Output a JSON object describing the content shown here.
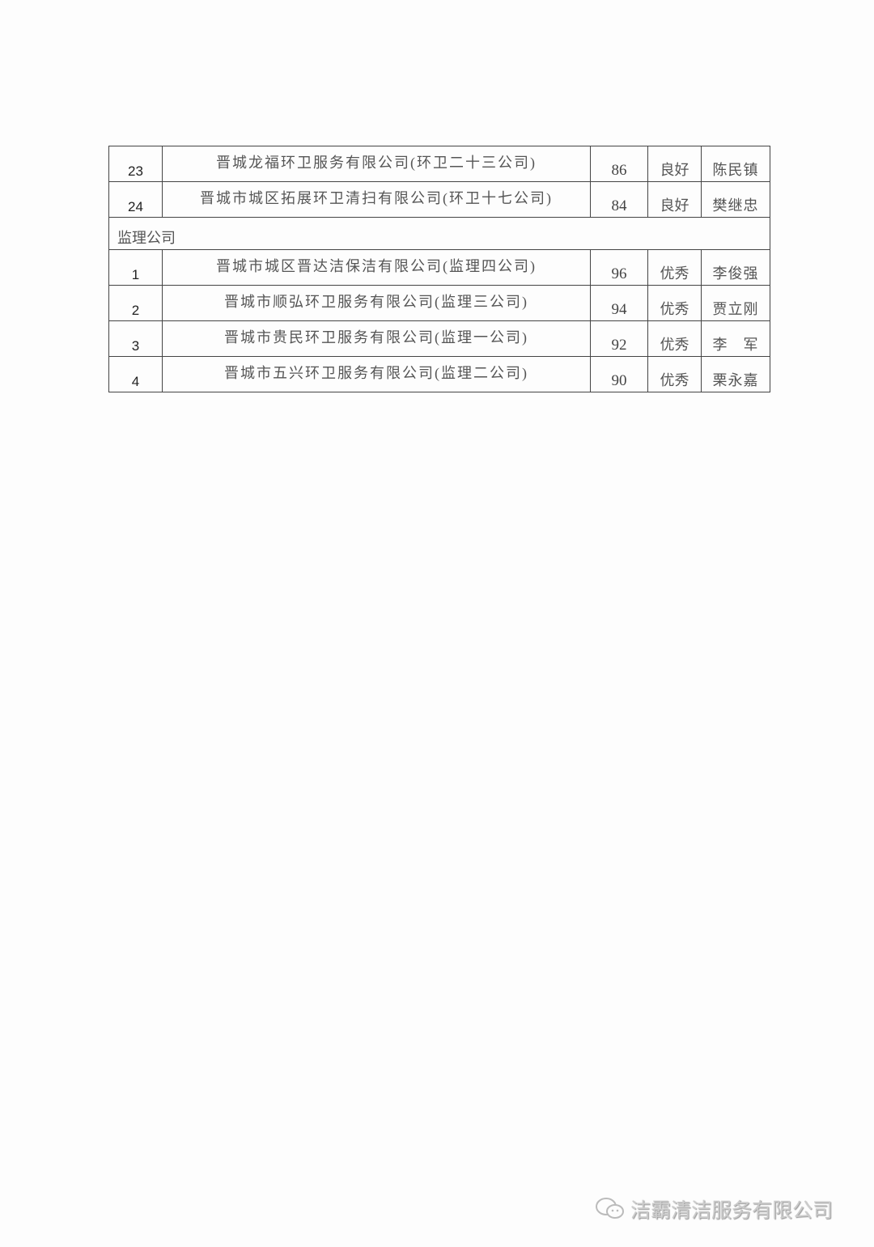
{
  "rows_top": [
    {
      "no": "23",
      "name": "晋城龙福环卫服务有限公司(环卫二十三公司)",
      "score": "86",
      "grade": "良好",
      "person": "陈民镇"
    },
    {
      "no": "24",
      "name": "晋城市城区拓展环卫清扫有限公司(环卫十七公司)",
      "score": "84",
      "grade": "良好",
      "person": "樊继忠"
    }
  ],
  "section_label": "监理公司",
  "rows_section": [
    {
      "no": "1",
      "name": "晋城市城区晋达洁保洁有限公司(监理四公司)",
      "score": "96",
      "grade": "优秀",
      "person": "李俊强"
    },
    {
      "no": "2",
      "name": "晋城市顺弘环卫服务有限公司(监理三公司)",
      "score": "94",
      "grade": "优秀",
      "person": "贾立刚"
    },
    {
      "no": "3",
      "name": "晋城市贵民环卫服务有限公司(监理一公司)",
      "score": "92",
      "grade": "优秀",
      "person": "李　军"
    },
    {
      "no": "4",
      "name": "晋城市五兴环卫服务有限公司(监理二公司)",
      "score": "90",
      "grade": "优秀",
      "person": "栗永嘉"
    }
  ],
  "watermark": {
    "icon": "wechat-icon",
    "text": "洁霸清洁服务有限公司"
  }
}
